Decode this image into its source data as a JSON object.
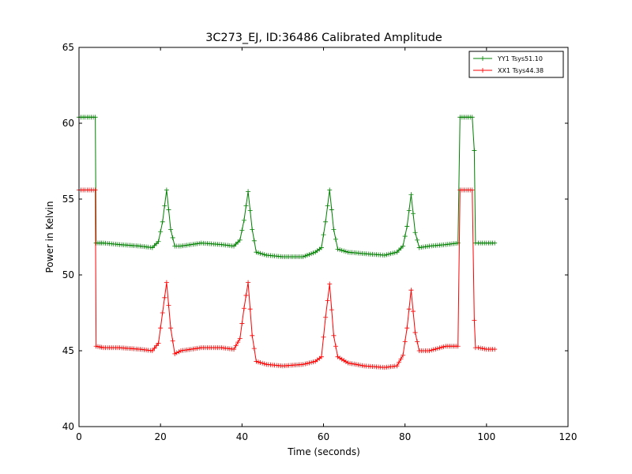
{
  "chart_data": {
    "type": "line",
    "title": "3C273_EJ, ID:36486 Calibrated Amplitude",
    "xlabel": "Time (seconds)",
    "ylabel": "Power in Kelvin",
    "xlim": [
      0,
      120
    ],
    "ylim": [
      40,
      65
    ],
    "xticks": [
      0,
      20,
      40,
      60,
      80,
      100,
      120
    ],
    "yticks": [
      40,
      45,
      50,
      55,
      60,
      65
    ],
    "grid": false,
    "legend_position": "top-right",
    "series": [
      {
        "name": "YY1 Tsys51.10",
        "color": "#008000",
        "marker": "+",
        "x": [
          0,
          2,
          4,
          4.2,
          6,
          10,
          15,
          18,
          19.5,
          20.5,
          21.5,
          22.5,
          23.5,
          25,
          30,
          35,
          38,
          39.5,
          40.5,
          41.5,
          42.5,
          43.5,
          46,
          50,
          55,
          58,
          59.5,
          60.5,
          61.5,
          62.5,
          63.5,
          66,
          70,
          75,
          78,
          79.5,
          80.5,
          81.5,
          82.5,
          83.5,
          86,
          90,
          93,
          93.5,
          94,
          96.5,
          97,
          97.3,
          98,
          100,
          102
        ],
        "y": [
          60.4,
          60.4,
          60.4,
          52.1,
          52.1,
          52.0,
          51.9,
          51.8,
          52.2,
          53.5,
          55.6,
          53.0,
          51.9,
          51.9,
          52.1,
          52.0,
          51.9,
          52.3,
          53.6,
          55.5,
          53.0,
          51.5,
          51.3,
          51.2,
          51.2,
          51.5,
          51.8,
          53.5,
          55.6,
          53.0,
          51.7,
          51.5,
          51.4,
          51.3,
          51.5,
          51.9,
          53.2,
          55.3,
          52.8,
          51.8,
          51.9,
          52.0,
          52.1,
          60.4,
          60.4,
          60.4,
          58.2,
          52.1,
          52.1,
          52.1,
          52.1
        ]
      },
      {
        "name": "XX1 Tsys44.38",
        "color": "#ff0000",
        "marker": "+",
        "x": [
          0,
          2,
          4,
          4.2,
          6,
          10,
          15,
          18,
          19.5,
          20.5,
          21.5,
          22.5,
          23.5,
          25,
          30,
          35,
          38,
          39.5,
          40.5,
          41.5,
          42.5,
          43.5,
          46,
          50,
          55,
          58,
          59.5,
          60.5,
          61.5,
          62.5,
          63.5,
          66,
          70,
          75,
          78,
          79.5,
          80.5,
          81.5,
          82.5,
          83.5,
          86,
          90,
          93,
          93.5,
          94,
          96.5,
          97,
          97.3,
          98,
          100,
          102
        ],
        "y": [
          55.6,
          55.6,
          55.6,
          45.3,
          45.2,
          45.2,
          45.1,
          45.0,
          45.5,
          47.5,
          49.5,
          46.5,
          44.8,
          45.0,
          45.2,
          45.2,
          45.1,
          45.8,
          47.8,
          49.5,
          46.0,
          44.3,
          44.1,
          44.0,
          44.1,
          44.3,
          44.6,
          47.2,
          49.4,
          46.0,
          44.6,
          44.2,
          44.0,
          43.9,
          44.0,
          44.7,
          46.5,
          49.0,
          46.2,
          45.0,
          45.0,
          45.3,
          45.3,
          55.6,
          55.6,
          55.6,
          47.0,
          45.2,
          45.2,
          45.1,
          45.1
        ]
      }
    ]
  }
}
